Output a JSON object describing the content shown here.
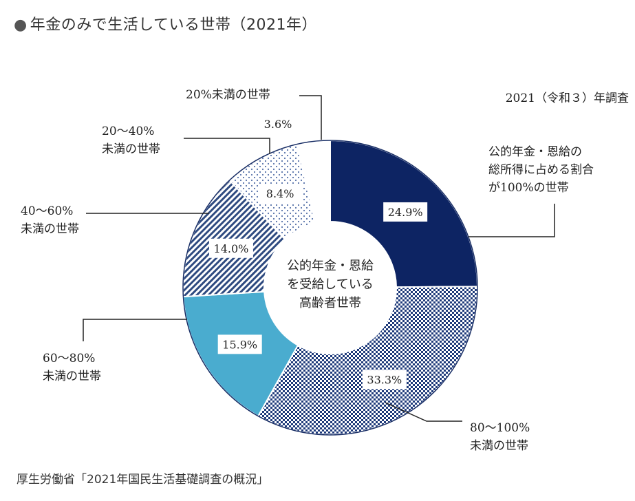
{
  "heading": {
    "bullet": "●",
    "text": "年金のみで生活している世帯（2021年）"
  },
  "source": "厚生労働省「2021年国民生活基礎調査の概況」",
  "chart_data": {
    "type": "pie",
    "variant": "donut",
    "title": "年金のみで生活している世帯（2021年）",
    "note": "2021（令和３）年調査",
    "center_label": [
      "公的年金・恩給",
      "を受給している",
      "高齢者世帯"
    ],
    "categories": [
      "公的年金・恩給の総所得に占める割合が100%の世帯",
      "80〜100%未満の世帯",
      "60〜80%未満の世帯",
      "40〜60%未満の世帯",
      "20〜40%未満の世帯",
      "20%未満の世帯"
    ],
    "values": [
      24.9,
      33.3,
      15.9,
      14.0,
      8.4,
      3.6
    ],
    "value_labels": [
      "24.9%",
      "33.3%",
      "15.9%",
      "14.0%",
      "8.4%",
      "3.6%"
    ],
    "slice_labels": [
      [
        "公的年金・恩給の",
        "総所得に占める割合",
        "が100%の世帯"
      ],
      [
        "80〜100%",
        "未満の世帯"
      ],
      [
        "60〜80%",
        "未満の世帯"
      ],
      [
        "40〜60%",
        "未満の世帯"
      ],
      [
        "20〜40%",
        "未満の世帯"
      ],
      [
        "20%未満の世帯"
      ]
    ],
    "colors": [
      "#0d2463",
      "#1e3a7a",
      "#4aaccf",
      "#2e4a80",
      "#5570a8",
      "#ffffff"
    ],
    "patterns": [
      "solid",
      "checker",
      "solid",
      "diagonal",
      "dots",
      "solid"
    ]
  }
}
